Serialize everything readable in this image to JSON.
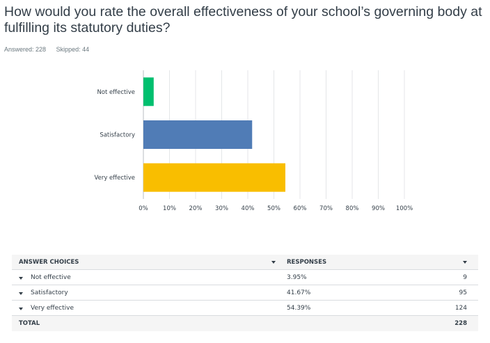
{
  "question": {
    "title": "How would you rate the overall effectiveness of your school’s governing body at fulfilling its statutory duties?",
    "answered": "Answered: 228",
    "skipped": "Skipped: 44"
  },
  "chart_data": {
    "type": "bar",
    "orientation": "horizontal",
    "categories": [
      "Not effective",
      "Satisfactory",
      "Very effective"
    ],
    "values": [
      3.95,
      41.67,
      54.39
    ],
    "colors": [
      "#00bf6f",
      "#507cb6",
      "#f9be00"
    ],
    "xlim": [
      0,
      100
    ],
    "xticks": [
      "0%",
      "10%",
      "20%",
      "30%",
      "40%",
      "50%",
      "60%",
      "70%",
      "80%",
      "90%",
      "100%"
    ],
    "grid": true,
    "title": "",
    "xlabel": "",
    "ylabel": ""
  },
  "table": {
    "headers": {
      "choices": "ANSWER CHOICES",
      "responses": "RESPONSES"
    },
    "rows": [
      {
        "choice": "Not effective",
        "percent": "3.95%",
        "count": "9"
      },
      {
        "choice": "Satisfactory",
        "percent": "41.67%",
        "count": "95"
      },
      {
        "choice": "Very effective",
        "percent": "54.39%",
        "count": "124"
      }
    ],
    "total": {
      "label": "TOTAL",
      "count": "228"
    }
  }
}
